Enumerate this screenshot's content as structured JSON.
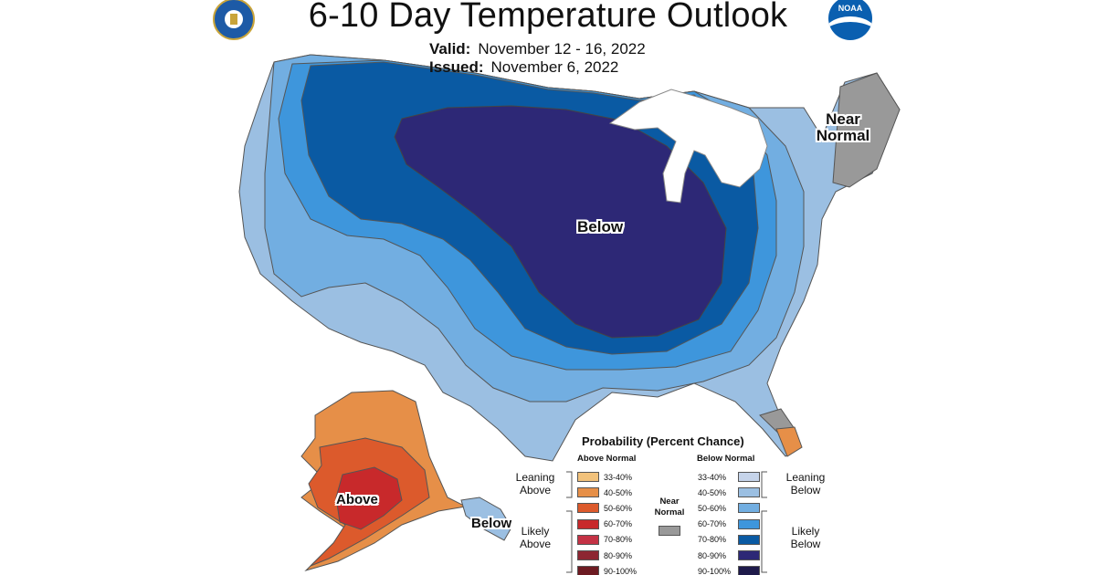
{
  "header": {
    "title": "6-10 Day Temperature Outlook",
    "valid_label": "Valid:",
    "valid_value": "November 12 - 16, 2022",
    "issued_label": "Issued:",
    "issued_value": "November 6, 2022"
  },
  "logos": {
    "left_icon": "commerce-seal-icon",
    "right_icon": "noaa-logo-icon",
    "noaa_text": "NOAA"
  },
  "map_labels": {
    "conus_below": "Below",
    "near_normal_line1": "Near",
    "near_normal_line2": "Normal",
    "alaska_above": "Above",
    "alaska_below": "Below"
  },
  "legend": {
    "title": "Probability (Percent Chance)",
    "above_header": "Above Normal",
    "below_header": "Below Normal",
    "near_header_line1": "Near",
    "near_header_line2": "Normal",
    "leaning_line1": "Leaning",
    "leaning_above_line2": "Above",
    "leaning_below_line2": "Below",
    "likely_line1": "Likely",
    "likely_above_line2": "Above",
    "likely_below_line2": "Below",
    "above_ranges": [
      "33-40%",
      "40-50%",
      "50-60%",
      "60-70%",
      "70-80%",
      "80-90%",
      "90-100%"
    ],
    "below_ranges": [
      "33-40%",
      "40-50%",
      "50-60%",
      "60-70%",
      "70-80%",
      "80-90%",
      "90-100%"
    ],
    "above_colors": [
      "#f2c27b",
      "#e68f48",
      "#dc5a2c",
      "#c8292b",
      "#c43245",
      "#8d2632",
      "#6d1b22"
    ],
    "below_colors": [
      "#c6d4ea",
      "#9bbfe2",
      "#72aee1",
      "#3e96dc",
      "#0a5aa3",
      "#2d2876",
      "#1e1a4a"
    ],
    "near_color": "#999999"
  }
}
